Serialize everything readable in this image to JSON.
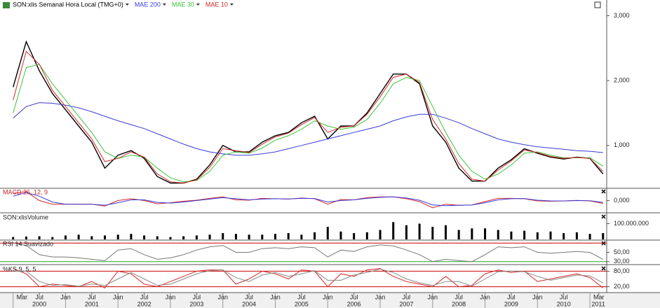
{
  "time_axis": {
    "x": [
      2000,
      2000.25,
      2000.5,
      2000.75,
      2001,
      2001.25,
      2001.5,
      2001.75,
      2002,
      2002.25,
      2002.5,
      2002.75,
      2003,
      2003.25,
      2003.5,
      2003.75,
      2004,
      2004.25,
      2004.5,
      2004.75,
      2005,
      2005.25,
      2005.5,
      2005.75,
      2006,
      2006.25,
      2006.5,
      2006.75,
      2007,
      2007.25,
      2007.5,
      2007.75,
      2008,
      2008.25,
      2008.5,
      2008.75,
      2009,
      2009.25,
      2009.5,
      2009.75,
      2010,
      2010.25,
      2010.5,
      2010.75,
      2011,
      2011.25
    ],
    "xlim": [
      1999.75,
      2011.32
    ],
    "xticks": [
      {
        "value": 2000.17,
        "label": "Mar"
      },
      {
        "value": 2000.5,
        "label": "Jul"
      },
      {
        "value": 2001,
        "label": "Jan"
      },
      {
        "value": 2001.5,
        "label": "Jul"
      },
      {
        "value": 2002,
        "label": "Jan"
      },
      {
        "value": 2002.5,
        "label": "Jul"
      },
      {
        "value": 2003,
        "label": "Jan"
      },
      {
        "value": 2003.5,
        "label": "Jul"
      },
      {
        "value": 2004,
        "label": "Jan"
      },
      {
        "value": 2004.5,
        "label": "Jul"
      },
      {
        "value": 2005,
        "label": "Jan"
      },
      {
        "value": 2005.5,
        "label": "Jul"
      },
      {
        "value": 2006,
        "label": "Jan"
      },
      {
        "value": 2006.5,
        "label": "Jul"
      },
      {
        "value": 2007,
        "label": "Jan"
      },
      {
        "value": 2007.5,
        "label": "Jul"
      },
      {
        "value": 2008,
        "label": "Jan"
      },
      {
        "value": 2008.5,
        "label": "Jul"
      },
      {
        "value": 2009,
        "label": "Jan"
      },
      {
        "value": 2009.5,
        "label": "Jul"
      },
      {
        "value": 2010,
        "label": "Jan"
      },
      {
        "value": 2010.5,
        "label": "Jul"
      },
      {
        "value": 2011.17,
        "label": "Mar"
      }
    ],
    "year_ticks": [
      2000,
      2001,
      2002,
      2003,
      2004,
      2005,
      2006,
      2007,
      2008,
      2009,
      2010,
      2011
    ]
  },
  "chart_data": [
    {
      "type": "line",
      "ylim": [
        350,
        3080
      ],
      "yticks": [
        {
          "value": 1000,
          "label": "1,000"
        },
        {
          "value": 2000,
          "label": "2,000"
        },
        {
          "value": 3000,
          "label": "3,000"
        }
      ],
      "series": [
        {
          "name": "SON:xlis Semanal Hora Local (TMG+0)",
          "color": "#000000",
          "values": [
            1900,
            2600,
            2150,
            1800,
            1550,
            1300,
            1050,
            650,
            850,
            920,
            800,
            520,
            420,
            420,
            480,
            700,
            1000,
            900,
            900,
            1050,
            1150,
            1200,
            1350,
            1450,
            1100,
            1300,
            1300,
            1500,
            1800,
            2100,
            2100,
            1950,
            1300,
            1050,
            650,
            450,
            450,
            650,
            780,
            950,
            880,
            820,
            790,
            820,
            800,
            560
          ]
        },
        {
          "name": "MAE 200",
          "color": "#3b3bd6",
          "values": [
            1420,
            1600,
            1660,
            1650,
            1620,
            1580,
            1520,
            1450,
            1380,
            1320,
            1260,
            1180,
            1100,
            1020,
            950,
            900,
            870,
            850,
            850,
            870,
            900,
            950,
            1000,
            1050,
            1100,
            1150,
            1200,
            1250,
            1300,
            1380,
            1440,
            1480,
            1480,
            1420,
            1350,
            1260,
            1180,
            1100,
            1050,
            1010,
            980,
            960,
            940,
            920,
            910,
            890
          ]
        },
        {
          "name": "MAE 30",
          "color": "#3cc43c",
          "values": [
            1500,
            2200,
            2250,
            1950,
            1700,
            1450,
            1200,
            900,
            800,
            850,
            820,
            650,
            500,
            440,
            460,
            600,
            850,
            900,
            880,
            960,
            1080,
            1150,
            1250,
            1380,
            1300,
            1250,
            1280,
            1400,
            1650,
            1950,
            2050,
            2000,
            1600,
            1200,
            850,
            600,
            480,
            560,
            700,
            880,
            900,
            850,
            810,
            810,
            810,
            680
          ]
        },
        {
          "name": "MAE 10",
          "color": "#d62828",
          "values": [
            1700,
            2450,
            2250,
            1850,
            1600,
            1350,
            1100,
            750,
            800,
            900,
            820,
            560,
            440,
            420,
            470,
            660,
            950,
            920,
            890,
            1020,
            1130,
            1190,
            1320,
            1430,
            1200,
            1280,
            1300,
            1480,
            1750,
            2050,
            2100,
            1970,
            1400,
            1100,
            720,
            480,
            450,
            620,
            760,
            930,
            890,
            830,
            800,
            815,
            800,
            600
          ]
        }
      ]
    },
    {
      "type": "line",
      "title": "MACD 26, 12, 9",
      "title_color": "#cc2222",
      "ylim": [
        -160,
        160
      ],
      "yticks": [
        {
          "value": 0,
          "label": "0,000"
        }
      ],
      "series": [
        {
          "color": "#d62828",
          "values": [
            100,
            125,
            0,
            -50,
            -50,
            -50,
            -50,
            -75,
            0,
            25,
            0,
            -45,
            -30,
            -10,
            5,
            30,
            50,
            10,
            5,
            30,
            25,
            20,
            35,
            25,
            -50,
            15,
            10,
            40,
            50,
            50,
            25,
            -15,
            -100,
            -50,
            -65,
            -60,
            -15,
            30,
            30,
            25,
            -5,
            -10,
            -5,
            2,
            -5,
            -40
          ]
        },
        {
          "color": "#3b3bd6",
          "values": [
            60,
            110,
            60,
            -20,
            -50,
            -50,
            -50,
            -65,
            -30,
            10,
            10,
            -25,
            -35,
            -20,
            0,
            20,
            40,
            25,
            10,
            20,
            25,
            22,
            30,
            28,
            -20,
            0,
            10,
            30,
            45,
            50,
            35,
            5,
            -60,
            -70,
            -65,
            -62,
            -30,
            10,
            25,
            28,
            5,
            -5,
            -6,
            0,
            -3,
            -25
          ]
        }
      ]
    },
    {
      "type": "bar",
      "title": "SON:xlisVolume",
      "title_color": "#222222",
      "ylim": [
        0,
        160000000
      ],
      "yticks": [
        {
          "value": 100000000,
          "label": "100.000.000"
        }
      ],
      "series": [
        {
          "color": "#000000",
          "values": [
            15000000,
            18000000,
            20000000,
            15000000,
            25000000,
            30000000,
            20000000,
            25000000,
            30000000,
            35000000,
            25000000,
            20000000,
            15000000,
            20000000,
            25000000,
            30000000,
            40000000,
            35000000,
            30000000,
            30000000,
            35000000,
            40000000,
            30000000,
            45000000,
            80000000,
            50000000,
            40000000,
            45000000,
            60000000,
            110000000,
            90000000,
            100000000,
            80000000,
            90000000,
            60000000,
            70000000,
            70000000,
            60000000,
            50000000,
            55000000,
            45000000,
            50000000,
            40000000,
            45000000,
            35000000,
            40000000
          ]
        }
      ]
    },
    {
      "type": "line",
      "title": "RSI 14 Suavizado",
      "title_color": "#222222",
      "ylim": [
        25,
        75
      ],
      "yticks": [
        {
          "value": 50,
          "label": "50,00"
        },
        {
          "value": 30,
          "label": "30,00"
        }
      ],
      "levels": [
        {
          "value": 70,
          "color": "#cc0000"
        },
        {
          "value": 30,
          "color": "#22aa22"
        }
      ],
      "series": [
        {
          "color": "#777777",
          "values": [
            70,
            65,
            45,
            40,
            40,
            38,
            35,
            32,
            55,
            58,
            45,
            35,
            38,
            45,
            55,
            62,
            65,
            50,
            50,
            58,
            60,
            58,
            62,
            60,
            40,
            55,
            52,
            62,
            66,
            64,
            55,
            45,
            30,
            35,
            32,
            30,
            45,
            62,
            60,
            62,
            50,
            48,
            50,
            52,
            50,
            35
          ]
        }
      ]
    },
    {
      "type": "line",
      "title": "%KS 9, 5, 5",
      "title_color": "#222222",
      "ylim": [
        0,
        100
      ],
      "yticks": [
        {
          "value": 80,
          "label": "80,00"
        },
        {
          "value": 20,
          "label": "20,00"
        }
      ],
      "levels": [
        {
          "value": 80,
          "color": "#cc0000"
        },
        {
          "value": 20,
          "color": "#cc0000"
        }
      ],
      "series": [
        {
          "color": "#d62828",
          "values": [
            90,
            70,
            20,
            30,
            25,
            20,
            40,
            15,
            80,
            70,
            30,
            20,
            40,
            60,
            80,
            85,
            85,
            30,
            50,
            80,
            70,
            50,
            85,
            80,
            20,
            70,
            60,
            85,
            90,
            60,
            40,
            30,
            20,
            60,
            20,
            25,
            70,
            85,
            75,
            80,
            40,
            50,
            60,
            70,
            55,
            15
          ]
        },
        {
          "color": "#888888",
          "values": [
            80,
            80,
            40,
            25,
            28,
            22,
            30,
            25,
            50,
            75,
            50,
            25,
            30,
            50,
            70,
            82,
            85,
            55,
            40,
            65,
            75,
            60,
            70,
            82,
            45,
            45,
            65,
            75,
            88,
            75,
            50,
            35,
            25,
            40,
            40,
            22,
            50,
            78,
            80,
            78,
            60,
            45,
            55,
            65,
            62,
            35
          ]
        }
      ]
    }
  ]
}
